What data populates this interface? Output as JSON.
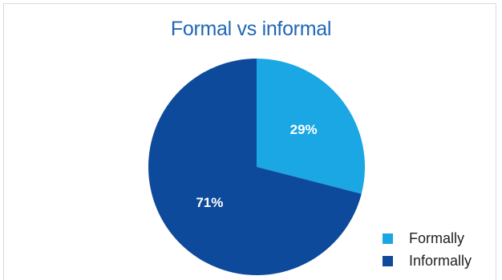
{
  "chart_data": {
    "type": "pie",
    "title": "Formal vs informal",
    "categories": [
      "Formally",
      "Informally"
    ],
    "values": [
      29,
      71
    ],
    "labels": [
      "29%",
      "71%"
    ],
    "colors": [
      "#1aa7e3",
      "#0e4a9b"
    ],
    "legend_position": "bottom-right",
    "start_angle_deg": 0,
    "direction": "clockwise"
  }
}
